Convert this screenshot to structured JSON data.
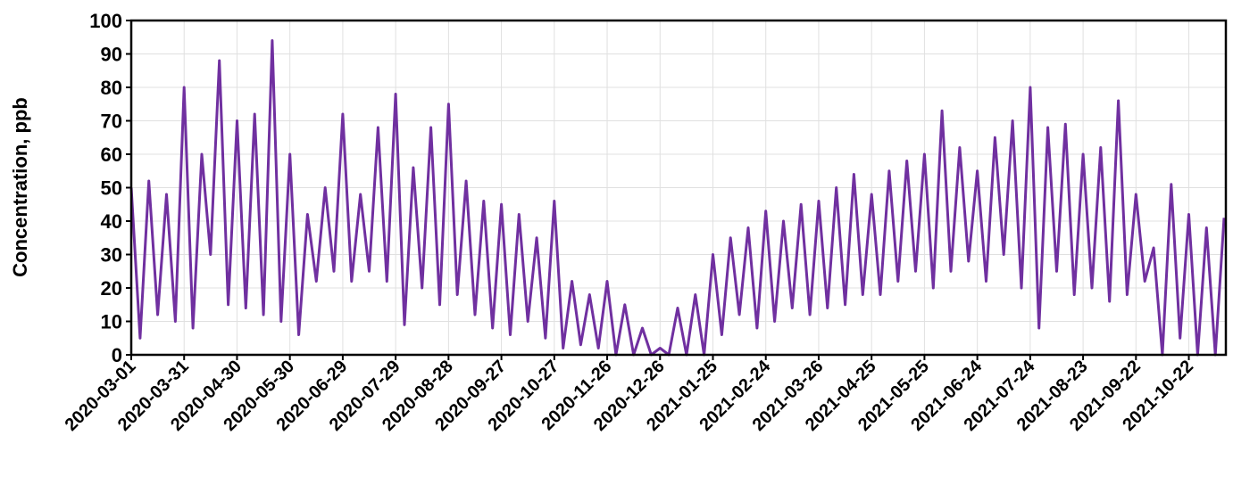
{
  "chart_data": {
    "type": "line",
    "ylabel": "Concentration, ppb",
    "x": [
      "2020-03-01",
      "2020-03-06",
      "2020-03-11",
      "2020-03-16",
      "2020-03-21",
      "2020-03-26",
      "2020-03-31",
      "2020-04-05",
      "2020-04-10",
      "2020-04-15",
      "2020-04-20",
      "2020-04-25",
      "2020-04-30",
      "2020-05-05",
      "2020-05-10",
      "2020-05-15",
      "2020-05-20",
      "2020-05-25",
      "2020-05-30",
      "2020-06-04",
      "2020-06-09",
      "2020-06-14",
      "2020-06-19",
      "2020-06-24",
      "2020-06-29",
      "2020-07-04",
      "2020-07-09",
      "2020-07-14",
      "2020-07-19",
      "2020-07-24",
      "2020-07-29",
      "2020-08-03",
      "2020-08-08",
      "2020-08-13",
      "2020-08-18",
      "2020-08-23",
      "2020-08-28",
      "2020-09-02",
      "2020-09-07",
      "2020-09-12",
      "2020-09-17",
      "2020-09-22",
      "2020-09-27",
      "2020-10-02",
      "2020-10-07",
      "2020-10-12",
      "2020-10-17",
      "2020-10-22",
      "2020-10-27",
      "2020-11-01",
      "2020-11-06",
      "2020-11-11",
      "2020-11-16",
      "2020-11-21",
      "2020-11-26",
      "2020-12-01",
      "2020-12-06",
      "2020-12-11",
      "2020-12-16",
      "2020-12-21",
      "2020-12-26",
      "2020-12-31",
      "2021-01-05",
      "2021-01-10",
      "2021-01-15",
      "2021-01-20",
      "2021-01-25",
      "2021-01-30",
      "2021-02-04",
      "2021-02-09",
      "2021-02-14",
      "2021-02-19",
      "2021-02-24",
      "2021-03-01",
      "2021-03-06",
      "2021-03-11",
      "2021-03-16",
      "2021-03-21",
      "2021-03-26",
      "2021-03-31",
      "2021-04-05",
      "2021-04-10",
      "2021-04-15",
      "2021-04-20",
      "2021-04-25",
      "2021-04-30",
      "2021-05-05",
      "2021-05-10",
      "2021-05-15",
      "2021-05-20",
      "2021-05-25",
      "2021-05-30",
      "2021-06-04",
      "2021-06-09",
      "2021-06-14",
      "2021-06-19",
      "2021-06-24",
      "2021-06-29",
      "2021-07-04",
      "2021-07-09",
      "2021-07-14",
      "2021-07-19",
      "2021-07-24",
      "2021-07-29",
      "2021-08-03",
      "2021-08-08",
      "2021-08-13",
      "2021-08-18",
      "2021-08-23",
      "2021-08-28",
      "2021-09-02",
      "2021-09-07",
      "2021-09-12",
      "2021-09-17",
      "2021-09-22",
      "2021-09-27",
      "2021-10-02",
      "2021-10-07",
      "2021-10-12",
      "2021-10-17",
      "2021-10-22",
      "2021-10-27",
      "2021-11-01",
      "2021-11-06",
      "2021-11-11"
    ],
    "series": [
      {
        "color": "#7030a0",
        "values": [
          50,
          5,
          52,
          12,
          48,
          10,
          80,
          8,
          60,
          30,
          88,
          15,
          70,
          14,
          72,
          12,
          94,
          10,
          60,
          6,
          42,
          22,
          50,
          25,
          72,
          22,
          48,
          25,
          68,
          22,
          78,
          9,
          56,
          20,
          68,
          15,
          75,
          18,
          52,
          12,
          46,
          8,
          45,
          6,
          42,
          10,
          35,
          5,
          46,
          2,
          22,
          3,
          18,
          2,
          22,
          0,
          15,
          0,
          8,
          0,
          2,
          0,
          14,
          0,
          18,
          0,
          30,
          6,
          35,
          12,
          38,
          8,
          43,
          10,
          40,
          14,
          45,
          12,
          46,
          14,
          50,
          15,
          54,
          18,
          48,
          18,
          55,
          22,
          58,
          25,
          60,
          20,
          73,
          25,
          62,
          28,
          55,
          22,
          65,
          30,
          70,
          20,
          80,
          8,
          68,
          25,
          69,
          18,
          60,
          20,
          62,
          16,
          76,
          18,
          48,
          22,
          32,
          0,
          51,
          5,
          42,
          0,
          38,
          0,
          41
        ]
      }
    ],
    "xlim": [
      "2020-03-01",
      "2021-11-12"
    ],
    "xticks": [
      "2020-03-01",
      "2020-03-31",
      "2020-04-30",
      "2020-05-30",
      "2020-06-29",
      "2020-07-29",
      "2020-08-28",
      "2020-09-27",
      "2020-10-27",
      "2020-11-26",
      "2020-12-26",
      "2021-01-25",
      "2021-02-24",
      "2021-03-26",
      "2021-04-25",
      "2021-05-25",
      "2021-06-24",
      "2021-07-24",
      "2021-08-23",
      "2021-09-22",
      "2021-10-22"
    ],
    "ylim": [
      0,
      100
    ],
    "yticks": [
      0,
      10,
      20,
      30,
      40,
      50,
      60,
      70,
      80,
      90,
      100
    ],
    "grid": true
  }
}
